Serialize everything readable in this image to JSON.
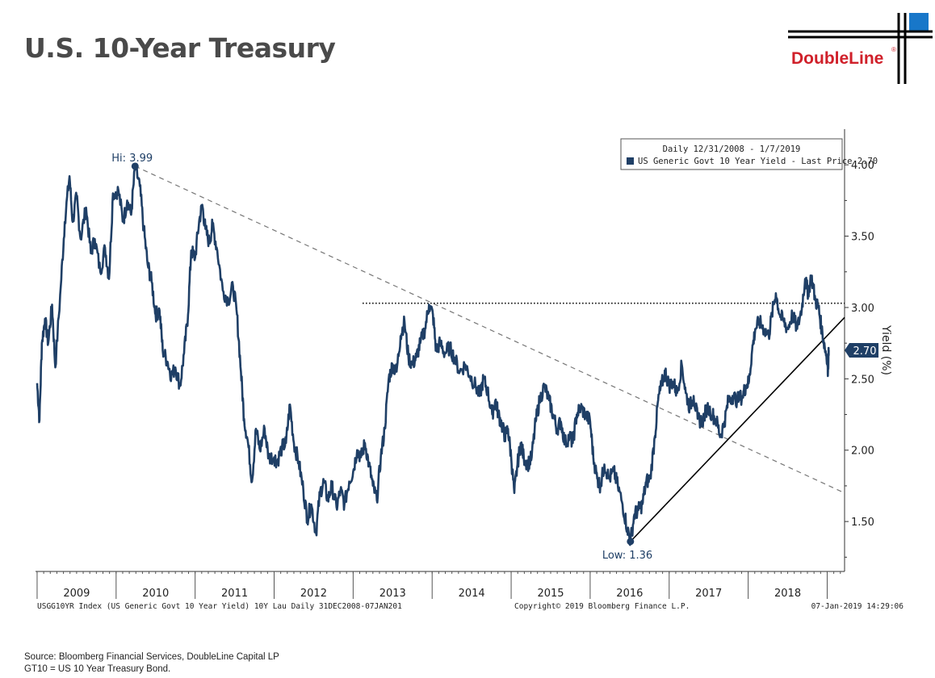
{
  "page": {
    "title": "U.S. 10-Year Treasury",
    "logo_text": "DoubleLine",
    "logo_registered": "®",
    "footer_left": "USGG10YR Index (US Generic Govt 10 Year Yield) 10Y Lau  Daily 31DEC2008-07JAN201",
    "footer_center": "Copyright© 2019 Bloomberg Finance L.P.",
    "footer_right": "07-Jan-2019 14:29:06",
    "source_line1": "Source: Bloomberg Financial Services, DoubleLine Capital LP",
    "source_line2": "GT10 = US 10 Year Treasury Bond.",
    "colors": {
      "series": "#1f3f66",
      "title": "#4a4a4a",
      "logo_red": "#d0202a",
      "logo_blue": "#1877c9"
    }
  },
  "chart_data": {
    "type": "line",
    "legend_title": "Daily 12/31/2008 - 1/7/2019",
    "legend_placement": "top-right",
    "ylabel": "Yield (%)",
    "yticks": [
      "4.00",
      "3.50",
      "3.00",
      "2.50",
      "2.00",
      "1.50"
    ],
    "ylim": [
      1.15,
      4.25
    ],
    "xlim": [
      2008.98,
      2019.22
    ],
    "xlabels": [
      "2009",
      "2010",
      "2011",
      "2012",
      "2013",
      "2014",
      "2015",
      "2016",
      "2017",
      "2018"
    ],
    "grid": false,
    "series": [
      {
        "name": "US Generic Govt 10 Year Yield - Last Price 2.70",
        "last_value": "2.70",
        "points": [
          [
            2009.0,
            2.47
          ],
          [
            2009.03,
            2.21
          ],
          [
            2009.06,
            2.75
          ],
          [
            2009.1,
            2.92
          ],
          [
            2009.14,
            2.75
          ],
          [
            2009.19,
            3.02
          ],
          [
            2009.23,
            2.58
          ],
          [
            2009.3,
            3.15
          ],
          [
            2009.35,
            3.6
          ],
          [
            2009.41,
            3.92
          ],
          [
            2009.45,
            3.6
          ],
          [
            2009.5,
            3.78
          ],
          [
            2009.55,
            3.48
          ],
          [
            2009.62,
            3.7
          ],
          [
            2009.68,
            3.38
          ],
          [
            2009.73,
            3.48
          ],
          [
            2009.8,
            3.25
          ],
          [
            2009.86,
            3.42
          ],
          [
            2009.91,
            3.2
          ],
          [
            2009.96,
            3.8
          ],
          [
            2010.03,
            3.82
          ],
          [
            2010.09,
            3.6
          ],
          [
            2010.14,
            3.75
          ],
          [
            2010.19,
            3.65
          ],
          [
            2010.24,
            3.99
          ],
          [
            2010.3,
            3.85
          ],
          [
            2010.35,
            3.55
          ],
          [
            2010.4,
            3.3
          ],
          [
            2010.45,
            3.18
          ],
          [
            2010.5,
            2.95
          ],
          [
            2010.55,
            2.98
          ],
          [
            2010.59,
            2.7
          ],
          [
            2010.65,
            2.62
          ],
          [
            2010.7,
            2.52
          ],
          [
            2010.75,
            2.58
          ],
          [
            2010.81,
            2.45
          ],
          [
            2010.86,
            2.68
          ],
          [
            2010.91,
            2.95
          ],
          [
            2010.95,
            3.4
          ],
          [
            2011.0,
            3.35
          ],
          [
            2011.05,
            3.6
          ],
          [
            2011.09,
            3.72
          ],
          [
            2011.13,
            3.55
          ],
          [
            2011.18,
            3.45
          ],
          [
            2011.22,
            3.58
          ],
          [
            2011.28,
            3.4
          ],
          [
            2011.35,
            3.12
          ],
          [
            2011.42,
            3.05
          ],
          [
            2011.48,
            3.15
          ],
          [
            2011.53,
            2.95
          ],
          [
            2011.58,
            2.55
          ],
          [
            2011.62,
            2.22
          ],
          [
            2011.67,
            2.05
          ],
          [
            2011.72,
            1.78
          ],
          [
            2011.77,
            2.15
          ],
          [
            2011.82,
            2.0
          ],
          [
            2011.88,
            2.15
          ],
          [
            2011.93,
            1.95
          ],
          [
            2012.0,
            1.95
          ],
          [
            2012.04,
            1.92
          ],
          [
            2012.1,
            2.02
          ],
          [
            2012.15,
            2.05
          ],
          [
            2012.2,
            2.32
          ],
          [
            2012.25,
            2.05
          ],
          [
            2012.31,
            1.92
          ],
          [
            2012.37,
            1.72
          ],
          [
            2012.42,
            1.52
          ],
          [
            2012.47,
            1.62
          ],
          [
            2012.53,
            1.42
          ],
          [
            2012.58,
            1.7
          ],
          [
            2012.63,
            1.78
          ],
          [
            2012.68,
            1.65
          ],
          [
            2012.73,
            1.75
          ],
          [
            2012.79,
            1.6
          ],
          [
            2012.84,
            1.72
          ],
          [
            2012.89,
            1.62
          ],
          [
            2012.95,
            1.78
          ],
          [
            2013.0,
            1.85
          ],
          [
            2013.05,
            2.0
          ],
          [
            2013.1,
            1.95
          ],
          [
            2013.15,
            2.05
          ],
          [
            2013.2,
            1.9
          ],
          [
            2013.25,
            1.75
          ],
          [
            2013.3,
            1.65
          ],
          [
            2013.35,
            1.95
          ],
          [
            2013.4,
            2.15
          ],
          [
            2013.45,
            2.5
          ],
          [
            2013.5,
            2.6
          ],
          [
            2013.55,
            2.55
          ],
          [
            2013.6,
            2.8
          ],
          [
            2013.65,
            2.9
          ],
          [
            2013.7,
            2.65
          ],
          [
            2013.75,
            2.6
          ],
          [
            2013.8,
            2.65
          ],
          [
            2013.85,
            2.75
          ],
          [
            2013.91,
            2.85
          ],
          [
            2013.96,
            3.02
          ],
          [
            2014.01,
            2.95
          ],
          [
            2014.05,
            2.7
          ],
          [
            2014.1,
            2.75
          ],
          [
            2014.16,
            2.68
          ],
          [
            2014.22,
            2.72
          ],
          [
            2014.28,
            2.65
          ],
          [
            2014.35,
            2.55
          ],
          [
            2014.42,
            2.6
          ],
          [
            2014.48,
            2.52
          ],
          [
            2014.55,
            2.45
          ],
          [
            2014.6,
            2.38
          ],
          [
            2014.65,
            2.5
          ],
          [
            2014.7,
            2.42
          ],
          [
            2014.76,
            2.25
          ],
          [
            2014.8,
            2.35
          ],
          [
            2014.84,
            2.25
          ],
          [
            2014.88,
            2.18
          ],
          [
            2014.92,
            2.1
          ],
          [
            2014.96,
            2.15
          ],
          [
            2015.0,
            1.95
          ],
          [
            2015.04,
            1.7
          ],
          [
            2015.08,
            1.9
          ],
          [
            2015.12,
            2.05
          ],
          [
            2015.16,
            1.95
          ],
          [
            2015.21,
            1.9
          ],
          [
            2015.26,
            1.95
          ],
          [
            2015.31,
            2.2
          ],
          [
            2015.36,
            2.35
          ],
          [
            2015.42,
            2.45
          ],
          [
            2015.48,
            2.35
          ],
          [
            2015.53,
            2.25
          ],
          [
            2015.58,
            2.15
          ],
          [
            2015.63,
            2.2
          ],
          [
            2015.68,
            2.05
          ],
          [
            2015.74,
            2.1
          ],
          [
            2015.78,
            2.05
          ],
          [
            2015.83,
            2.25
          ],
          [
            2015.88,
            2.3
          ],
          [
            2015.94,
            2.25
          ],
          [
            2016.0,
            2.2
          ],
          [
            2016.04,
            1.95
          ],
          [
            2016.09,
            1.8
          ],
          [
            2016.13,
            1.75
          ],
          [
            2016.18,
            1.9
          ],
          [
            2016.24,
            1.8
          ],
          [
            2016.3,
            1.85
          ],
          [
            2016.35,
            1.75
          ],
          [
            2016.41,
            1.62
          ],
          [
            2016.47,
            1.45
          ],
          [
            2016.51,
            1.36
          ],
          [
            2016.56,
            1.55
          ],
          [
            2016.61,
            1.58
          ],
          [
            2016.66,
            1.62
          ],
          [
            2016.71,
            1.78
          ],
          [
            2016.76,
            1.8
          ],
          [
            2016.82,
            2.1
          ],
          [
            2016.86,
            2.35
          ],
          [
            2016.9,
            2.45
          ],
          [
            2016.95,
            2.55
          ],
          [
            2017.0,
            2.45
          ],
          [
            2017.05,
            2.48
          ],
          [
            2017.1,
            2.4
          ],
          [
            2017.16,
            2.6
          ],
          [
            2017.21,
            2.4
          ],
          [
            2017.26,
            2.3
          ],
          [
            2017.31,
            2.38
          ],
          [
            2017.36,
            2.22
          ],
          [
            2017.42,
            2.2
          ],
          [
            2017.48,
            2.3
          ],
          [
            2017.55,
            2.25
          ],
          [
            2017.6,
            2.2
          ],
          [
            2017.65,
            2.1
          ],
          [
            2017.7,
            2.2
          ],
          [
            2017.75,
            2.35
          ],
          [
            2017.8,
            2.38
          ],
          [
            2017.86,
            2.35
          ],
          [
            2017.93,
            2.38
          ],
          [
            2017.97,
            2.45
          ],
          [
            2018.01,
            2.48
          ],
          [
            2018.05,
            2.7
          ],
          [
            2018.09,
            2.85
          ],
          [
            2018.14,
            2.9
          ],
          [
            2018.2,
            2.85
          ],
          [
            2018.26,
            2.8
          ],
          [
            2018.3,
            2.95
          ],
          [
            2018.35,
            3.1
          ],
          [
            2018.4,
            2.95
          ],
          [
            2018.45,
            2.9
          ],
          [
            2018.5,
            2.85
          ],
          [
            2018.56,
            2.95
          ],
          [
            2018.62,
            2.85
          ],
          [
            2018.68,
            3.0
          ],
          [
            2018.72,
            3.2
          ],
          [
            2018.76,
            3.1
          ],
          [
            2018.8,
            3.22
          ],
          [
            2018.85,
            3.05
          ],
          [
            2018.89,
            3.0
          ],
          [
            2018.93,
            2.85
          ],
          [
            2018.97,
            2.72
          ],
          [
            2019.0,
            2.65
          ],
          [
            2019.01,
            2.56
          ],
          [
            2019.02,
            2.7
          ]
        ]
      }
    ],
    "annotations": {
      "high": {
        "label": "Hi: 3.99",
        "x": 2010.24,
        "y": 3.99
      },
      "low": {
        "label": "Low: 1.36",
        "x": 2016.51,
        "y": 1.36
      },
      "resistance_level": {
        "y": 3.03,
        "x_start": 2013.12,
        "x_end": 2019.22
      },
      "downtrend_line": {
        "from": [
          2010.24,
          3.99
        ],
        "to": [
          2019.22,
          1.7
        ]
      },
      "uptrend_line": {
        "from": [
          2016.51,
          1.36
        ],
        "to": [
          2019.22,
          2.93
        ]
      }
    }
  }
}
